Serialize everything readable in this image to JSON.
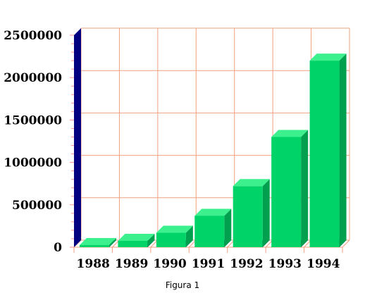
{
  "chart_data": {
    "type": "bar",
    "categories": [
      "1988",
      "1989",
      "1990",
      "1991",
      "1992",
      "1993",
      "1994"
    ],
    "values": [
      25000,
      75000,
      170000,
      370000,
      720000,
      1300000,
      2200000
    ],
    "ylim": [
      0,
      2500000
    ],
    "yticks": [
      "0",
      "500000",
      "1000000",
      "1500000",
      "2000000",
      "2500000"
    ],
    "grid": true,
    "colors": {
      "bar_front": "#00d468",
      "bar_top": "#3cf08e",
      "bar_side": "#00a04e",
      "floor_shadow": "#000080",
      "axis_wall": "#000080",
      "grid": "#f0a080"
    }
  },
  "caption": "Figura 1"
}
